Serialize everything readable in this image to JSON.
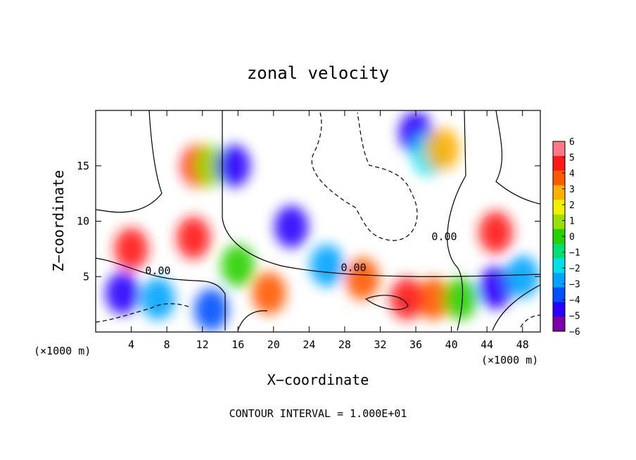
{
  "chart_data": {
    "type": "heatmap",
    "title": "zonal velocity",
    "xlabel": "X−coordinate",
    "ylabel": "Z−coordinate",
    "x_unit_label_left": "(×1000 m)",
    "x_unit_label_right": "(×1000 m)",
    "xlim": [
      0,
      50
    ],
    "ylim": [
      0,
      20
    ],
    "x_ticks": [
      4,
      8,
      12,
      16,
      20,
      24,
      28,
      32,
      36,
      40,
      44,
      48
    ],
    "y_ticks": [
      5,
      10,
      15
    ],
    "footer": "CONTOUR INTERVAL = 1.000E+01",
    "colorbar": {
      "ticks": [
        "6",
        "5",
        "4",
        "3",
        "2",
        "1",
        "0",
        "−1",
        "−2",
        "−3",
        "−4",
        "−5",
        "−6"
      ],
      "range": [
        -6,
        6
      ]
    },
    "contour_labels": [
      {
        "text": "0.00",
        "x": 7.0,
        "y": 5.2
      },
      {
        "text": "0.00",
        "x": 29.0,
        "y": 5.5
      },
      {
        "text": "0.00",
        "x": 39.2,
        "y": 8.3
      }
    ],
    "features": [
      {
        "x": 11.5,
        "z": 15.0,
        "value": 5
      },
      {
        "x": 13.0,
        "z": 15.0,
        "value": 1
      },
      {
        "x": 15.5,
        "z": 15.0,
        "value": -5
      },
      {
        "x": 11.0,
        "z": 8.5,
        "value": 5
      },
      {
        "x": 4.0,
        "z": 7.5,
        "value": 5
      },
      {
        "x": 16.0,
        "z": 6.0,
        "value": 0
      },
      {
        "x": 19.5,
        "z": 3.5,
        "value": 4
      },
      {
        "x": 22.0,
        "z": 9.5,
        "value": -5
      },
      {
        "x": 26.0,
        "z": 6.0,
        "value": -3
      },
      {
        "x": 30.0,
        "z": 4.8,
        "value": 4
      },
      {
        "x": 36.0,
        "z": 18.0,
        "value": -5
      },
      {
        "x": 37.5,
        "z": 16.0,
        "value": -2
      },
      {
        "x": 39.0,
        "z": 16.5,
        "value": 3
      },
      {
        "x": 38.0,
        "z": 3.0,
        "value": 4
      },
      {
        "x": 41.0,
        "z": 3.0,
        "value": 0
      },
      {
        "x": 45.0,
        "z": 4.0,
        "value": -5
      },
      {
        "x": 3.0,
        "z": 3.5,
        "value": -5
      },
      {
        "x": 7.0,
        "z": 3.0,
        "value": -3
      },
      {
        "x": 48.0,
        "z": 5.0,
        "value": -3
      },
      {
        "x": 45.0,
        "z": 9.0,
        "value": 5
      },
      {
        "x": 13.0,
        "z": 2.0,
        "value": -4
      },
      {
        "x": 35.0,
        "z": 3.0,
        "value": 5
      }
    ]
  }
}
